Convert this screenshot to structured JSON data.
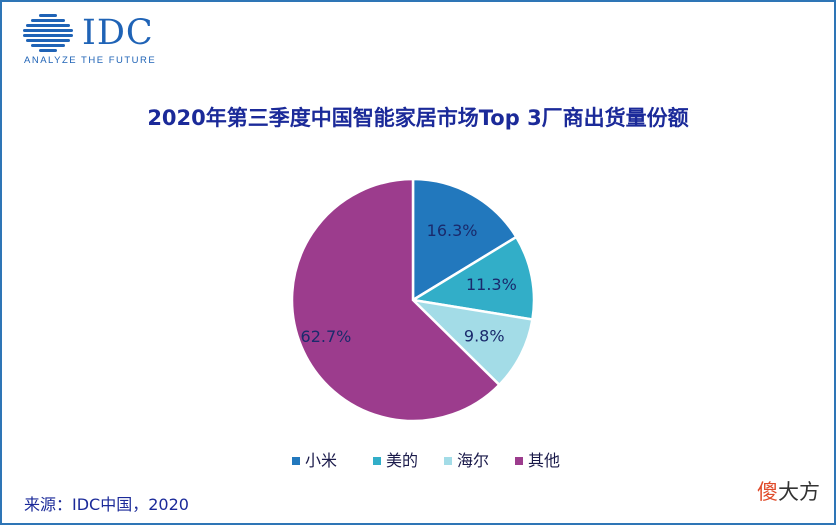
{
  "logo": {
    "wordmark": "IDC",
    "tagline": "ANALYZE THE FUTURE",
    "color": "#1f63b6"
  },
  "chart_data": {
    "type": "pie",
    "title": "2020年第三季度中国智能家居市场Top 3厂商出货量份额",
    "categories": [
      "小米",
      "美的",
      "海尔",
      "其他"
    ],
    "values": [
      16.3,
      11.3,
      9.8,
      62.7
    ],
    "labels": [
      "16.3%",
      "11.3%",
      "9.8%",
      "62.7%"
    ],
    "colors": [
      "#2278bd",
      "#32aec8",
      "#a3dce7",
      "#9c3c8d"
    ],
    "start_angle": "12 o'clock",
    "direction": "clockwise",
    "legend_position": "bottom"
  },
  "source": "来源：IDC中国，2020",
  "watermark": {
    "part_a": "傻",
    "part_b": "大方"
  }
}
